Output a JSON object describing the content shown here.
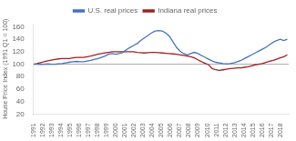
{
  "chart_data": {
    "type": "line",
    "ylabel": "House Price Index (1991 Q1 = 100)",
    "x": [
      1991.0,
      1991.3908,
      1991.7817,
      1992.1725,
      1992.5634,
      1992.9542,
      1993.3451,
      1993.7359,
      1994.1268,
      1994.5176,
      1994.9085,
      1995.2993,
      1995.6901,
      1996.081,
      1996.4718,
      1996.8627,
      1997.2535,
      1997.6444,
      1998.0352,
      1998.4261,
      1998.8169,
      1999.2077,
      1999.5986,
      1999.9894,
      2000.3803,
      2000.7711,
      2001.162,
      2001.5528,
      2001.9437,
      2002.3345,
      2002.7254,
      2003.1162,
      2003.507,
      2003.8979,
      2004.2887,
      2004.6796,
      2005.0704,
      2005.4613,
      2005.8521,
      2006.243,
      2006.6338,
      2007.0246,
      2007.4155,
      2007.8063,
      2008.1972,
      2008.588,
      2008.9789,
      2009.3697,
      2009.7606,
      2010.1514,
      2010.5423,
      2010.9331,
      2011.3239,
      2011.7148,
      2012.1056,
      2012.4965,
      2012.8873,
      2013.2782,
      2013.669,
      2014.0599,
      2014.4507,
      2014.8415,
      2015.2324,
      2015.6232,
      2016.0141,
      2016.4049,
      2016.7958,
      2017.1866,
      2017.5775,
      2017.9683,
      2018.3592,
      2018.75
    ],
    "series": [
      {
        "name": "U.S. real prices",
        "color": "#4472c4",
        "values": [
          100,
          100,
          99.5,
          100,
          100.5,
          100,
          100,
          100.5,
          101,
          102,
          103,
          104,
          104.5,
          104,
          104,
          105,
          106,
          107.5,
          109,
          111,
          113,
          116,
          117,
          116,
          117,
          119,
          123,
          127,
          130,
          133,
          138,
          142,
          146,
          150,
          153,
          154,
          153,
          150,
          145,
          136,
          127,
          121,
          117,
          115,
          117,
          119,
          117,
          114,
          111,
          108,
          105,
          103,
          102,
          101,
          100.5,
          101,
          102,
          104,
          106,
          109,
          112,
          115,
          118,
          121,
          124,
          127,
          131,
          135,
          138,
          140,
          138,
          140
        ]
      },
      {
        "name": "Indiana real prices",
        "color": "#a02020",
        "values": [
          100,
          101,
          102.5,
          104,
          105.5,
          106.5,
          107.5,
          108.5,
          109,
          109,
          109,
          110,
          111,
          111,
          111,
          112,
          113,
          114.5,
          116,
          117,
          118,
          119,
          120,
          120,
          120,
          120,
          120,
          120,
          120,
          119,
          118.5,
          118,
          118.5,
          119,
          119,
          118.5,
          118,
          117.5,
          117,
          116.5,
          116,
          115,
          114,
          113,
          112,
          110,
          107,
          104,
          101.5,
          99,
          93,
          91,
          90,
          91,
          92,
          93,
          93.5,
          94,
          94,
          95,
          96,
          97.5,
          99,
          100,
          101,
          103,
          104.5,
          106,
          108,
          110,
          112,
          115
        ]
      }
    ],
    "hlines": [
      {
        "y": 100,
        "color": "#aaaaaa"
      }
    ],
    "xlim": [
      1991,
      2018.9
    ],
    "xticks": [
      1991,
      1992,
      1993,
      1994,
      1995,
      1996,
      1997,
      1998,
      1999,
      2000,
      2001,
      2002,
      2003,
      2004,
      2005,
      2006,
      2007,
      2008,
      2009,
      2010,
      2011,
      2012,
      2013,
      2014,
      2015,
      2016,
      2017,
      2018
    ],
    "ylim": [
      20,
      165
    ],
    "yticks": [
      20,
      40,
      60,
      80,
      100,
      120,
      140,
      160
    ],
    "grid": false,
    "legend": "top"
  }
}
